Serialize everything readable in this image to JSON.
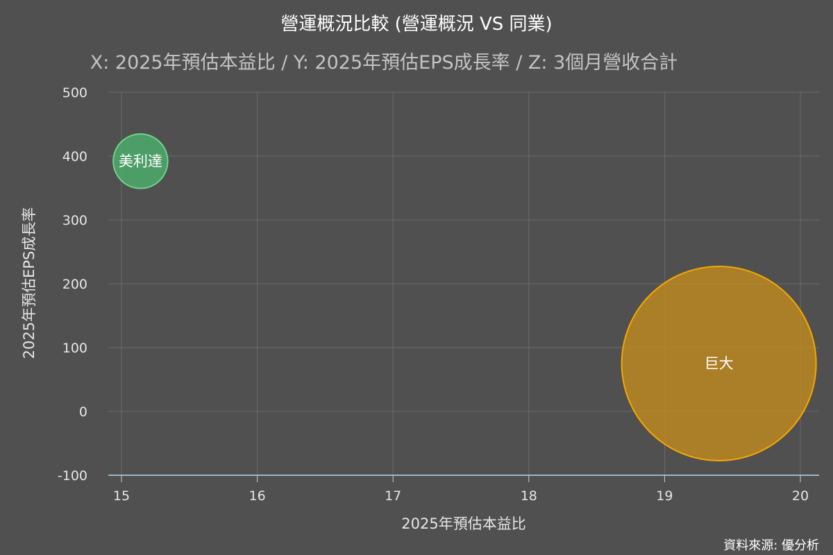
{
  "chart_data": {
    "type": "scatter",
    "variant": "bubble",
    "title": "營運概況比較 (營運概況 VS 同業)",
    "subtitle": "X: 2025年預估本益比 / Y: 2025年預估EPS成長率 / Z: 3個月營收合計",
    "xlabel": "2025年預估本益比",
    "ylabel": "2025年預估EPS成長率",
    "xlim": [
      15,
      20
    ],
    "ylim": [
      -100,
      500
    ],
    "x_ticks": [
      15,
      16,
      17,
      18,
      19,
      20
    ],
    "y_ticks": [
      -100,
      0,
      100,
      200,
      300,
      400,
      500
    ],
    "grid": true,
    "points": [
      {
        "label": "美利達",
        "x": 15.14,
        "y": 392,
        "z_relative": 0.28,
        "color": "#4caf6b",
        "stroke": "#6fd68e"
      },
      {
        "label": "巨大",
        "x": 19.4,
        "y": 75,
        "z_relative": 1.0,
        "color": "#c08a1e",
        "stroke": "#f5a800"
      }
    ],
    "credits": "資料來源: 優分析"
  },
  "colors": {
    "background": "#505050",
    "grid": "#6a6a6a",
    "axis_line": "#b8d4f0"
  }
}
